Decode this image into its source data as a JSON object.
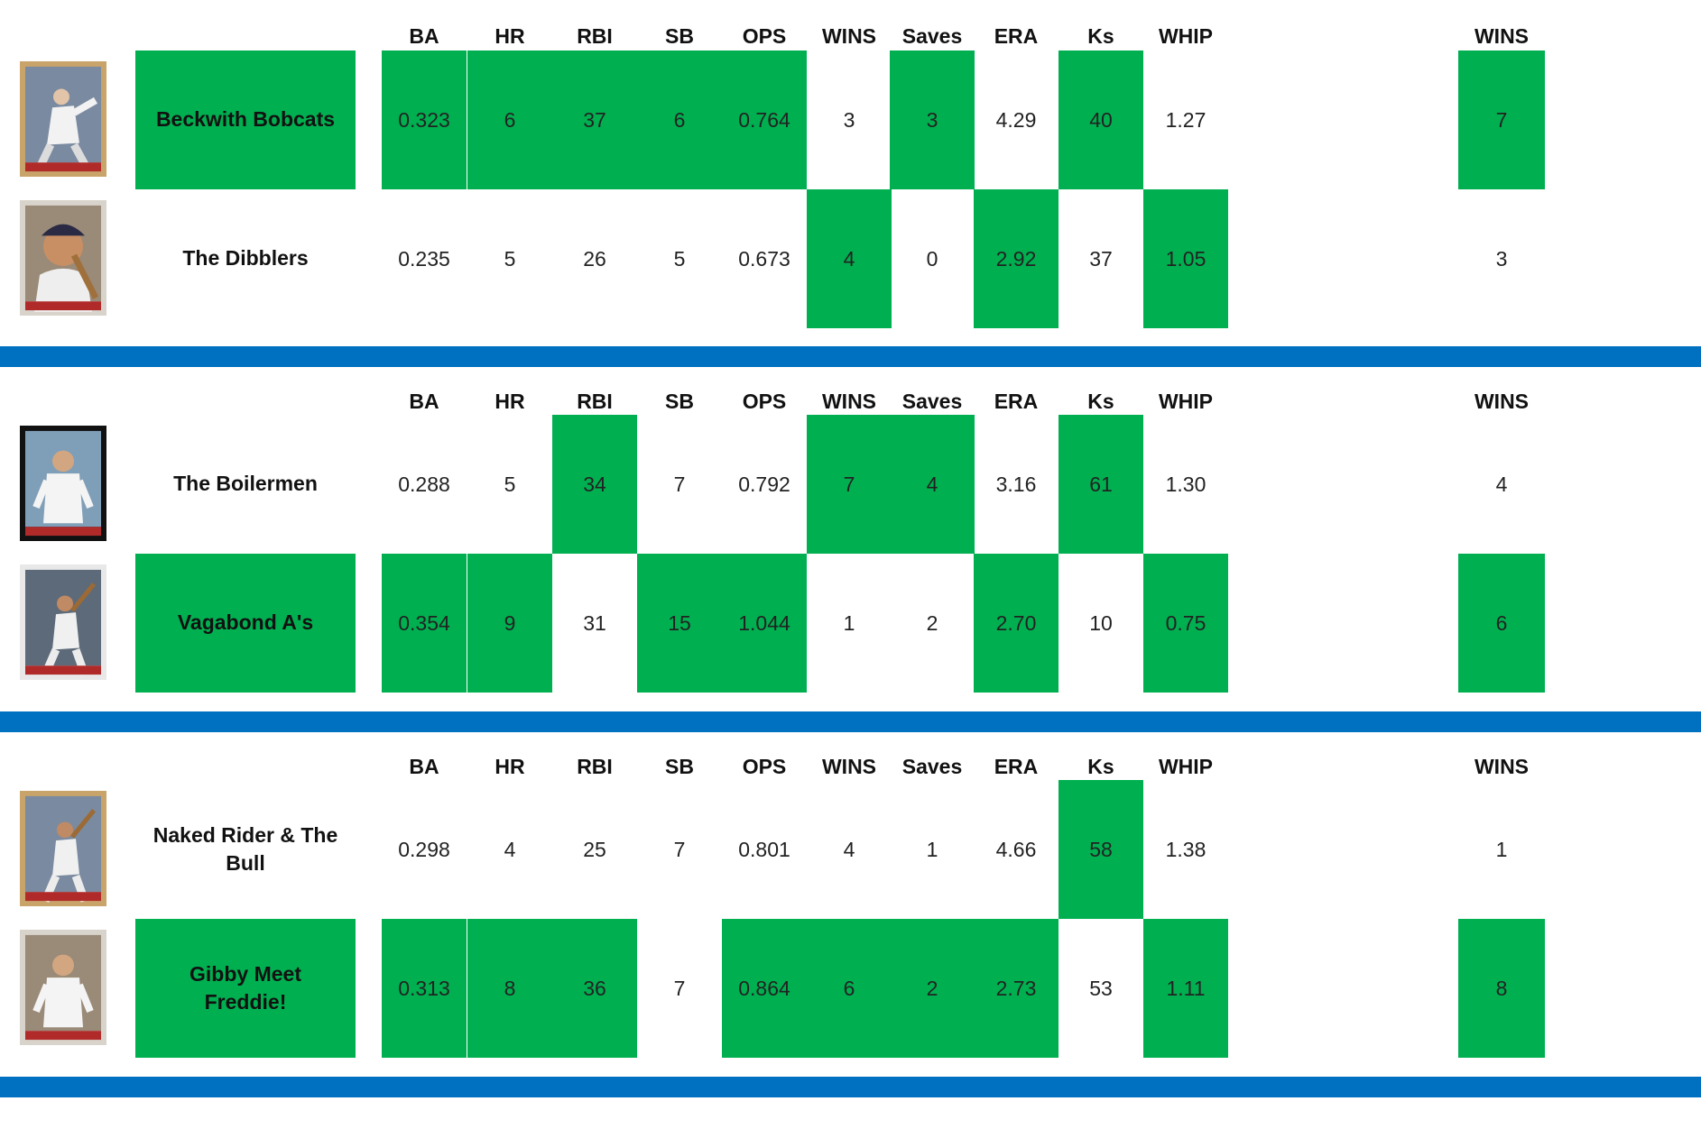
{
  "headers": [
    "BA",
    "HR",
    "RBI",
    "SB",
    "OPS",
    "WINS",
    "Saves",
    "ERA",
    "Ks",
    "WHIP"
  ],
  "wins_header": "WINS",
  "colors": {
    "win": "#00b050",
    "separator": "#0070c0"
  },
  "matchups": [
    {
      "teams": [
        {
          "name": "Beckwith Bobcats",
          "name_winner": true,
          "card_icon": "baseball-card-pitcher-icon",
          "stats": [
            "0.323",
            "6",
            "37",
            "6",
            "0.764",
            "3",
            "3",
            "4.29",
            "40",
            "1.27"
          ],
          "winners": [
            true,
            true,
            true,
            true,
            true,
            false,
            true,
            false,
            true,
            false
          ],
          "wins": "7",
          "wins_winner": true
        },
        {
          "name": "The Dibblers",
          "name_winner": false,
          "card_icon": "baseball-card-portrait-icon",
          "stats": [
            "0.235",
            "5",
            "26",
            "5",
            "0.673",
            "4",
            "0",
            "2.92",
            "37",
            "1.05"
          ],
          "winners": [
            false,
            false,
            false,
            false,
            false,
            true,
            false,
            true,
            false,
            true
          ],
          "wins": "3",
          "wins_winner": false
        }
      ]
    },
    {
      "teams": [
        {
          "name": "The Boilermen",
          "name_winner": false,
          "card_icon": "baseball-card-player-icon",
          "stats": [
            "0.288",
            "5",
            "34",
            "7",
            "0.792",
            "7",
            "4",
            "3.16",
            "61",
            "1.30"
          ],
          "winners": [
            false,
            false,
            true,
            false,
            false,
            true,
            true,
            false,
            true,
            false
          ],
          "wins": "4",
          "wins_winner": false
        },
        {
          "name": "Vagabond A's",
          "name_winner": true,
          "card_icon": "baseball-card-batter-icon",
          "stats": [
            "0.354",
            "9",
            "31",
            "15",
            "1.044",
            "1",
            "2",
            "2.70",
            "10",
            "0.75"
          ],
          "winners": [
            true,
            true,
            false,
            true,
            true,
            false,
            false,
            true,
            false,
            true
          ],
          "wins": "6",
          "wins_winner": true
        }
      ]
    },
    {
      "teams": [
        {
          "name": "Naked Rider & The Bull",
          "name_winner": false,
          "card_icon": "baseball-card-batter-icon",
          "stats": [
            "0.298",
            "4",
            "25",
            "7",
            "0.801",
            "4",
            "1",
            "4.66",
            "58",
            "1.38"
          ],
          "winners": [
            false,
            false,
            false,
            false,
            false,
            false,
            false,
            false,
            true,
            false
          ],
          "wins": "1",
          "wins_winner": false
        },
        {
          "name": "Gibby Meet Freddie!",
          "name_winner": true,
          "card_icon": "baseball-card-player-icon",
          "stats": [
            "0.313",
            "8",
            "36",
            "7",
            "0.864",
            "6",
            "2",
            "2.73",
            "53",
            "1.11"
          ],
          "winners": [
            true,
            true,
            true,
            false,
            true,
            true,
            true,
            true,
            false,
            true
          ],
          "wins": "8",
          "wins_winner": true
        }
      ]
    }
  ]
}
